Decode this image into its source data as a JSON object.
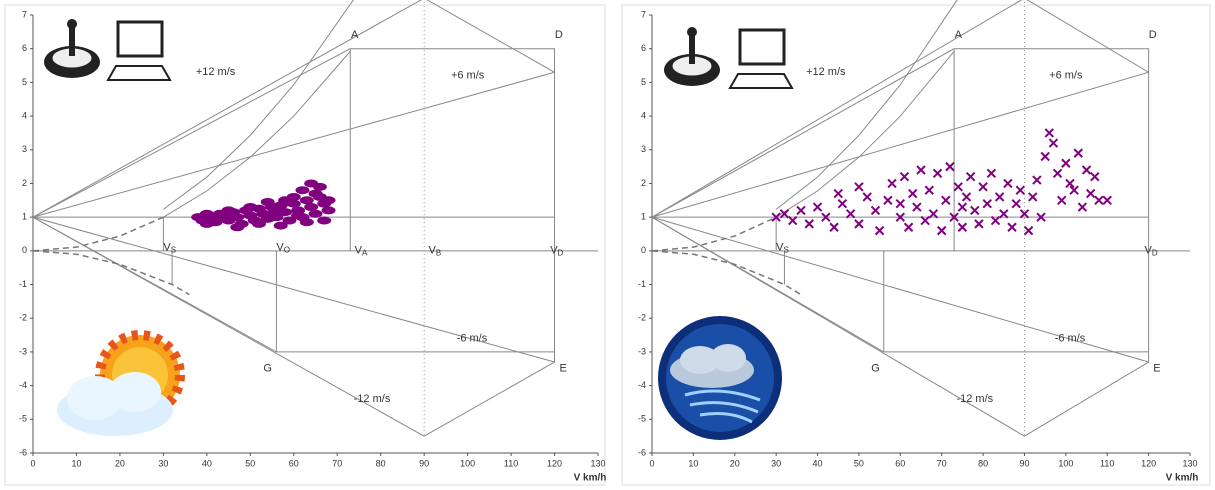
{
  "chart_data": [
    {
      "type": "scatter",
      "xlabel": "V km/h",
      "xlim": [
        0,
        130
      ],
      "xticks": [
        0,
        10,
        20,
        30,
        40,
        50,
        60,
        70,
        80,
        90,
        100,
        110,
        120,
        130
      ],
      "ylim": [
        -6,
        7
      ],
      "yticks": [
        -6,
        -5,
        -4,
        -3,
        -2,
        -1,
        0,
        1,
        2,
        3,
        4,
        5,
        6,
        7
      ],
      "lines": [
        {
          "style": "solid",
          "x": [
            0,
            130
          ],
          "y": [
            0,
            0
          ]
        },
        {
          "style": "solid",
          "x": [
            0,
            120
          ],
          "y": [
            1,
            1
          ]
        },
        {
          "style": "solid",
          "x": [
            0,
            90
          ],
          "y": [
            1,
            7.5
          ]
        },
        {
          "style": "solid",
          "x": [
            0,
            73
          ],
          "y": [
            1,
            6
          ]
        },
        {
          "style": "solid",
          "x": [
            0,
            120
          ],
          "y": [
            1,
            5.3
          ]
        },
        {
          "style": "solid",
          "x": [
            0,
            90
          ],
          "y": [
            1,
            -5.5
          ]
        },
        {
          "style": "solid",
          "x": [
            0,
            120
          ],
          "y": [
            1,
            -3.3
          ]
        },
        {
          "style": "solid",
          "x": [
            0,
            56
          ],
          "y": [
            1,
            -3
          ]
        },
        {
          "style": "solid",
          "x": [
            90,
            120,
            120,
            90
          ],
          "y": [
            7.5,
            5.3,
            -3.3,
            -5.5
          ]
        },
        {
          "style": "solid",
          "x": [
            73,
            120,
            120
          ],
          "y": [
            6,
            6,
            5.3
          ]
        },
        {
          "style": "solid",
          "x": [
            73,
            73
          ],
          "y": [
            6,
            0
          ]
        },
        {
          "style": "solid",
          "x": [
            56,
            120
          ],
          "y": [
            -3,
            -3
          ]
        },
        {
          "style": "solid",
          "x": [
            56,
            56
          ],
          "y": [
            0,
            -3
          ]
        },
        {
          "style": "dotted",
          "x": [
            90,
            90
          ],
          "y": [
            7.5,
            -5.5
          ]
        },
        {
          "style": "solid",
          "x": [
            30,
            30
          ],
          "y": [
            1,
            0
          ]
        },
        {
          "style": "solid",
          "x": [
            32,
            32
          ],
          "y": [
            0,
            -1
          ]
        },
        {
          "style": "solid",
          "x": [
            30,
            40,
            50,
            60,
            73
          ],
          "y": [
            1,
            1.78,
            2.78,
            4,
            5.92
          ]
        },
        {
          "style": "solid",
          "x": [
            30,
            40,
            50,
            60,
            74
          ],
          "y": [
            1.23,
            2.19,
            3.43,
            4.93,
            7.5
          ]
        },
        {
          "style": "dashed",
          "x": [
            0,
            10,
            20,
            30
          ],
          "y": [
            0,
            0.11,
            0.44,
            1
          ]
        },
        {
          "style": "dashed",
          "x": [
            0,
            10,
            20,
            32,
            36
          ],
          "y": [
            0,
            -0.1,
            -0.4,
            -1,
            -1.3
          ]
        }
      ],
      "annotations": [
        {
          "text": "A",
          "x": 74,
          "y": 6.4
        },
        {
          "text": "D",
          "x": 121,
          "y": 6.4
        },
        {
          "text": "E",
          "x": 122,
          "y": -3.5
        },
        {
          "text": "G",
          "x": 54,
          "y": -3.5
        },
        {
          "text": "+12 m/s",
          "x": 42,
          "y": 5.3
        },
        {
          "text": "+6 m/s",
          "x": 100,
          "y": 5.2
        },
        {
          "text": "-6 m/s",
          "x": 101,
          "y": -2.6
        },
        {
          "text": "-12 m/s",
          "x": 78,
          "y": -4.4
        }
      ],
      "speed_labels": [
        {
          "text": "V",
          "sub": "S",
          "x": 30,
          "y": 0.4
        },
        {
          "text": "V",
          "sub": "O",
          "x": 56,
          "y": 0.4
        },
        {
          "text": "V",
          "sub": "A",
          "x": 74,
          "y": 0.3
        },
        {
          "text": "V",
          "sub": "B",
          "x": 91,
          "y": 0.3
        },
        {
          "text": "V",
          "sub": "D",
          "x": 119,
          "y": 0.3
        }
      ],
      "series": [
        {
          "color": "#800080",
          "marker": "dot",
          "x": [
            38,
            39,
            40,
            41,
            42,
            43,
            44,
            45,
            46,
            47,
            48,
            49,
            50,
            51,
            52,
            53,
            54,
            55,
            56,
            57,
            58,
            59,
            60,
            61,
            62,
            63,
            64,
            65,
            66,
            67,
            68,
            62,
            64,
            66,
            60,
            58,
            55,
            50,
            45,
            40,
            67,
            63,
            57,
            52,
            47,
            65,
            68,
            61,
            56,
            54
          ],
          "y": [
            1.0,
            0.9,
            1.1,
            1.0,
            0.85,
            1.1,
            1.0,
            0.9,
            1.15,
            1.0,
            0.8,
            1.2,
            1.05,
            0.9,
            1.25,
            1.1,
            0.95,
            1.3,
            1.0,
            1.35,
            1.15,
            0.9,
            1.4,
            1.2,
            1.0,
            1.5,
            1.3,
            1.1,
            1.6,
            1.4,
            1.2,
            1.8,
            2.0,
            1.9,
            1.6,
            1.5,
            1.1,
            1.3,
            1.2,
            0.8,
            0.9,
            0.85,
            0.75,
            0.8,
            0.7,
            1.7,
            1.5,
            1.05,
            1.2,
            1.45
          ]
        }
      ]
    },
    {
      "type": "scatter",
      "xlabel": "V km/h",
      "xlim": [
        0,
        130
      ],
      "xticks": [
        0,
        10,
        20,
        30,
        40,
        50,
        60,
        70,
        80,
        90,
        100,
        110,
        120,
        130
      ],
      "ylim": [
        -6,
        7
      ],
      "yticks": [
        -6,
        -5,
        -4,
        -3,
        -2,
        -1,
        0,
        1,
        2,
        3,
        4,
        5,
        6,
        7
      ],
      "lines": [
        {
          "style": "solid",
          "x": [
            0,
            130
          ],
          "y": [
            0,
            0
          ]
        },
        {
          "style": "solid",
          "x": [
            0,
            120
          ],
          "y": [
            1,
            1
          ]
        },
        {
          "style": "solid",
          "x": [
            0,
            90
          ],
          "y": [
            1,
            7.5
          ]
        },
        {
          "style": "solid",
          "x": [
            0,
            73
          ],
          "y": [
            1,
            6
          ]
        },
        {
          "style": "solid",
          "x": [
            0,
            120
          ],
          "y": [
            1,
            5.3
          ]
        },
        {
          "style": "solid",
          "x": [
            0,
            90
          ],
          "y": [
            1,
            -5.5
          ]
        },
        {
          "style": "solid",
          "x": [
            0,
            120
          ],
          "y": [
            1,
            -3.3
          ]
        },
        {
          "style": "solid",
          "x": [
            0,
            56
          ],
          "y": [
            1,
            -3
          ]
        },
        {
          "style": "solid",
          "x": [
            90,
            120,
            120,
            90
          ],
          "y": [
            7.5,
            5.3,
            -3.3,
            -5.5
          ]
        },
        {
          "style": "solid",
          "x": [
            73,
            120,
            120
          ],
          "y": [
            6,
            6,
            5.3
          ]
        },
        {
          "style": "solid",
          "x": [
            73,
            73
          ],
          "y": [
            6,
            0
          ]
        },
        {
          "style": "solid",
          "x": [
            56,
            120
          ],
          "y": [
            -3,
            -3
          ]
        },
        {
          "style": "solid",
          "x": [
            56,
            56
          ],
          "y": [
            0,
            -3
          ]
        },
        {
          "style": "dotted",
          "x": [
            90,
            90
          ],
          "y": [
            7.5,
            -5.5
          ]
        },
        {
          "style": "solid",
          "x": [
            30,
            30
          ],
          "y": [
            1,
            0
          ]
        },
        {
          "style": "solid",
          "x": [
            32,
            32
          ],
          "y": [
            0,
            -1
          ]
        },
        {
          "style": "solid",
          "x": [
            30,
            40,
            50,
            60,
            73
          ],
          "y": [
            1,
            1.78,
            2.78,
            4,
            5.92
          ]
        },
        {
          "style": "solid",
          "x": [
            30,
            40,
            50,
            60,
            74
          ],
          "y": [
            1.23,
            2.19,
            3.43,
            4.93,
            7.5
          ]
        },
        {
          "style": "dashed",
          "x": [
            0,
            10,
            20,
            30
          ],
          "y": [
            0,
            0.11,
            0.44,
            1
          ]
        },
        {
          "style": "dashed",
          "x": [
            0,
            10,
            20,
            32,
            36
          ],
          "y": [
            0,
            -0.1,
            -0.4,
            -1,
            -1.3
          ]
        }
      ],
      "annotations": [
        {
          "text": "A",
          "x": 74,
          "y": 6.4
        },
        {
          "text": "D",
          "x": 121,
          "y": 6.4
        },
        {
          "text": "E",
          "x": 122,
          "y": -3.5
        },
        {
          "text": "G",
          "x": 54,
          "y": -3.5
        },
        {
          "text": "+12 m/s",
          "x": 42,
          "y": 5.3
        },
        {
          "text": "+6 m/s",
          "x": 100,
          "y": 5.2
        },
        {
          "text": "-6 m/s",
          "x": 101,
          "y": -2.6
        },
        {
          "text": "-12 m/s",
          "x": 78,
          "y": -4.4
        }
      ],
      "speed_labels": [
        {
          "text": "V",
          "sub": "S",
          "x": 30,
          "y": 0.4
        },
        {
          "text": "V",
          "sub": "D",
          "x": 119,
          "y": 0.3
        }
      ],
      "series": [
        {
          "color": "#800080",
          "marker": "x",
          "x": [
            30,
            32,
            34,
            36,
            38,
            40,
            42,
            44,
            46,
            48,
            50,
            50,
            52,
            54,
            55,
            57,
            58,
            60,
            61,
            62,
            63,
            64,
            65,
            66,
            67,
            68,
            69,
            70,
            71,
            72,
            73,
            74,
            75,
            76,
            77,
            78,
            79,
            80,
            81,
            82,
            83,
            84,
            85,
            86,
            87,
            88,
            89,
            90,
            91,
            92,
            93,
            94,
            95,
            96,
            97,
            98,
            99,
            100,
            101,
            102,
            103,
            104,
            105,
            106,
            107,
            108,
            110,
            45,
            60,
            75
          ],
          "y": [
            1.0,
            1.1,
            0.9,
            1.2,
            0.8,
            1.3,
            1.0,
            0.7,
            1.4,
            1.1,
            0.8,
            1.9,
            1.6,
            1.2,
            0.6,
            1.5,
            2.0,
            1.0,
            2.2,
            0.7,
            1.7,
            1.3,
            2.4,
            0.9,
            1.8,
            1.1,
            2.3,
            0.6,
            1.5,
            2.5,
            1.0,
            1.9,
            0.7,
            1.6,
            2.2,
            1.2,
            0.8,
            1.9,
            1.4,
            2.3,
            0.9,
            1.6,
            1.1,
            2.0,
            0.7,
            1.4,
            1.8,
            1.1,
            0.6,
            1.6,
            2.1,
            1.0,
            2.8,
            3.5,
            3.2,
            2.3,
            1.5,
            2.6,
            2.0,
            1.8,
            2.9,
            1.3,
            2.4,
            1.7,
            2.2,
            1.5,
            1.5,
            1.7,
            1.4,
            1.3
          ]
        }
      ]
    }
  ]
}
